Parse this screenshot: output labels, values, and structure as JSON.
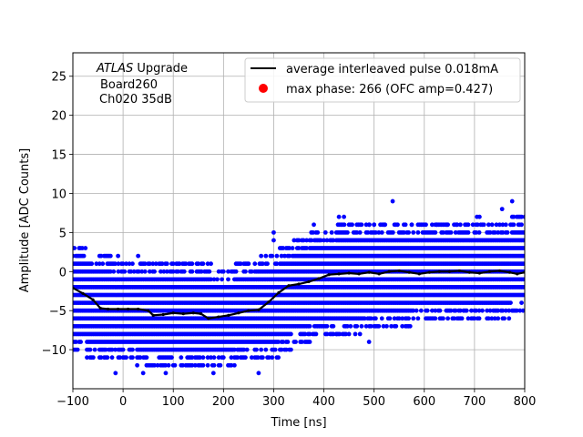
{
  "chart_data": {
    "type": "scatter",
    "title": "",
    "xlabel": "Time [ns]",
    "ylabel": "Amplitude [ADC Counts]",
    "xlim": [
      -100,
      800
    ],
    "ylim": [
      -15,
      28
    ],
    "xticks": [
      -100,
      0,
      100,
      200,
      300,
      400,
      500,
      600,
      700,
      800
    ],
    "yticks": [
      -10,
      -5,
      0,
      5,
      10,
      15,
      20,
      25
    ],
    "grid": true,
    "legend_position": "top-right",
    "annotation": {
      "line1_italic": "ATLAS",
      "line1_rest": " Upgrade",
      "line2": "Board260",
      "line3": "Ch020 35dB"
    },
    "legend": [
      {
        "label": "average interleaved pulse 0.018mA",
        "marker": "line",
        "color": "#000000"
      },
      {
        "label": "max phase: 266 (OFC amp=0.427)",
        "marker": "dot",
        "color": "#ff0000"
      }
    ],
    "samples": {
      "color": "#0000ff",
      "x_step": 3.125,
      "levels": "integer ADC counts",
      "band_x": [
        -100,
        -50,
        0,
        50,
        100,
        150,
        200,
        250,
        300,
        350,
        400,
        450,
        500,
        550,
        600,
        650,
        700,
        750,
        800
      ],
      "band_min": [
        -10,
        -11,
        -11,
        -12,
        -12,
        -12,
        -12,
        -11,
        -11,
        -9,
        -8,
        -8,
        -7,
        -7,
        -6,
        -6,
        -6,
        -6,
        -5
      ],
      "band_max": [
        3,
        2,
        1,
        1,
        1,
        1,
        0,
        1,
        2,
        4,
        5,
        6,
        6,
        6,
        6,
        6,
        6,
        6,
        7
      ],
      "outliers": [
        {
          "x": 537,
          "y": 9
        },
        {
          "x": 775,
          "y": 9
        },
        {
          "x": 755,
          "y": 8
        },
        {
          "x": 430,
          "y": 7
        },
        {
          "x": 440,
          "y": 7
        },
        {
          "x": 705,
          "y": 7
        },
        {
          "x": 710,
          "y": 7
        },
        {
          "x": 380,
          "y": 6
        },
        {
          "x": 490,
          "y": 6
        },
        {
          "x": 500,
          "y": 6
        },
        {
          "x": 520,
          "y": 6
        },
        {
          "x": 575,
          "y": 6
        },
        {
          "x": 625,
          "y": 6
        },
        {
          "x": 645,
          "y": 6
        },
        {
          "x": 665,
          "y": 6
        },
        {
          "x": 735,
          "y": 6
        },
        {
          "x": 790,
          "y": 6
        },
        {
          "x": 300,
          "y": 4
        },
        {
          "x": 300,
          "y": 5
        },
        {
          "x": -85,
          "y": 3
        },
        {
          "x": -10,
          "y": 2
        },
        {
          "x": 30,
          "y": 2
        },
        {
          "x": -15,
          "y": -13
        },
        {
          "x": 40,
          "y": -13
        },
        {
          "x": 85,
          "y": -13
        },
        {
          "x": 180,
          "y": -13
        },
        {
          "x": 270,
          "y": -13
        },
        {
          "x": 490,
          "y": -9
        },
        {
          "x": 425,
          "y": -8
        }
      ]
    },
    "series": [
      {
        "name": "average interleaved pulse 0.018mA",
        "x": [
          -100,
          -80,
          -60,
          -45,
          -30,
          -10,
          10,
          30,
          50,
          60,
          80,
          100,
          120,
          140,
          155,
          170,
          190,
          210,
          230,
          250,
          270,
          290,
          310,
          330,
          350,
          370,
          390,
          410,
          430,
          450,
          470,
          490,
          510,
          530,
          550,
          570,
          590,
          610,
          630,
          650,
          670,
          690,
          710,
          730,
          750,
          770,
          785,
          800
        ],
        "y": [
          -2.1,
          -2.8,
          -3.6,
          -4.7,
          -4.8,
          -4.8,
          -4.8,
          -4.8,
          -5.0,
          -5.6,
          -5.5,
          -5.3,
          -5.4,
          -5.3,
          -5.4,
          -6.0,
          -5.8,
          -5.6,
          -5.3,
          -5.0,
          -4.9,
          -3.9,
          -2.7,
          -1.8,
          -1.6,
          -1.3,
          -0.9,
          -0.4,
          -0.3,
          -0.2,
          -0.3,
          -0.1,
          -0.3,
          0.0,
          0.1,
          -0.1,
          -0.3,
          -0.1,
          0.0,
          0.0,
          0.1,
          -0.1,
          -0.2,
          0.0,
          0.1,
          -0.1,
          -0.3,
          -0.1
        ],
        "color": "#000000"
      }
    ]
  }
}
